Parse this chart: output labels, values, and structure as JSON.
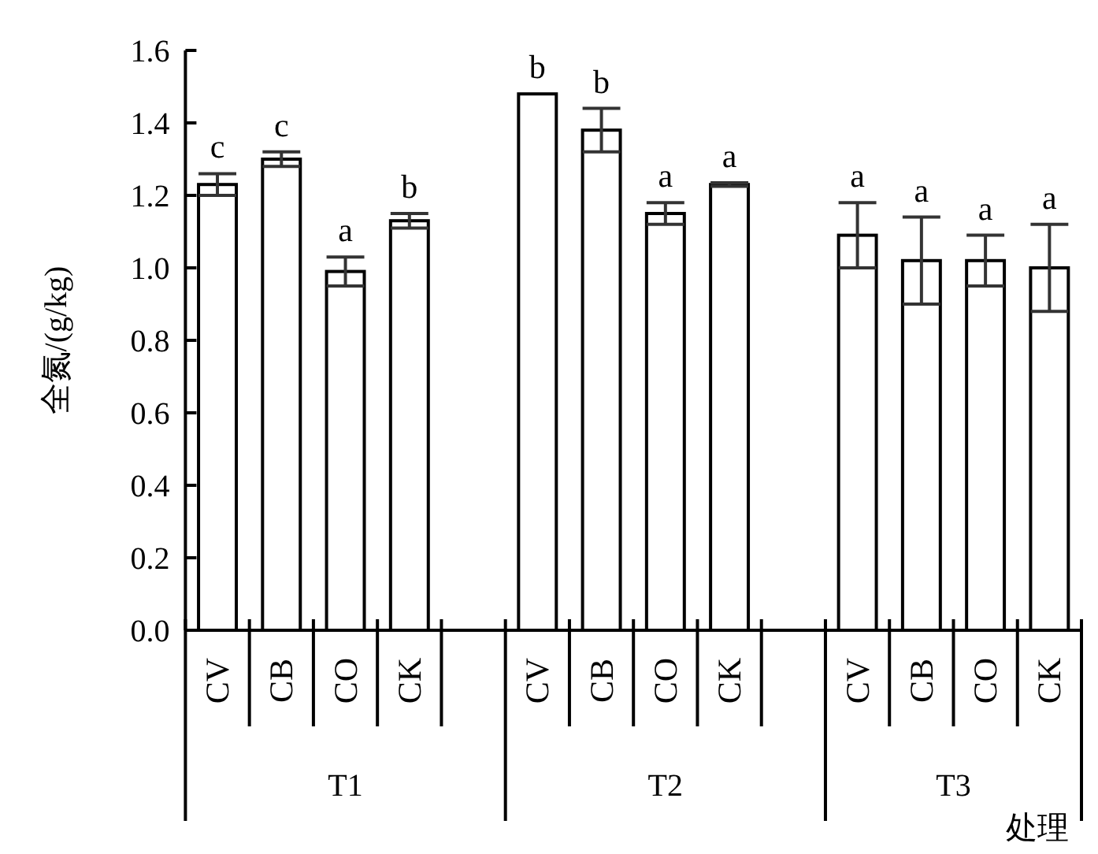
{
  "chart_data": {
    "type": "bar",
    "xlabel": "处理",
    "ylabel": "全氮/(g/kg)",
    "categories": [
      "CV",
      "CB",
      "CO",
      "CK",
      null,
      "CV",
      "CB",
      "CO",
      "CK",
      null,
      "CV",
      "CB",
      "CO",
      "CK"
    ],
    "series": [
      {
        "color": "#ffffff",
        "values": [
          1.23,
          1.3,
          0.99,
          1.13,
          null,
          1.48,
          1.38,
          1.15,
          1.23,
          null,
          1.09,
          1.02,
          1.02,
          1.0
        ],
        "errors": [
          0.03,
          0.02,
          0.04,
          0.02,
          null,
          null,
          0.06,
          0.03,
          0.005,
          null,
          0.09,
          0.12,
          0.07,
          0.12
        ],
        "value_labels": [
          "c",
          "c",
          "a",
          "b",
          null,
          "b",
          "b",
          "a",
          "a",
          null,
          "a",
          "a",
          "a",
          "a"
        ]
      }
    ],
    "annotations": [
      "T1",
      "T2",
      "T3"
    ],
    "ylim": [
      0,
      1.6
    ],
    "yticks": [
      {
        "value": 0,
        "label": "0.0"
      },
      {
        "value": 0.2,
        "label": "0.2"
      },
      {
        "value": 0.4,
        "label": "0.4"
      },
      {
        "value": 0.6,
        "label": "0.6"
      },
      {
        "value": 0.8,
        "label": "0.8"
      },
      {
        "value": 1.0,
        "label": "1.0"
      },
      {
        "value": 1.2,
        "label": "1.2"
      },
      {
        "value": 1.4,
        "label": "1.4"
      },
      {
        "value": 1.6,
        "label": "1.6"
      }
    ],
    "grid": false
  }
}
